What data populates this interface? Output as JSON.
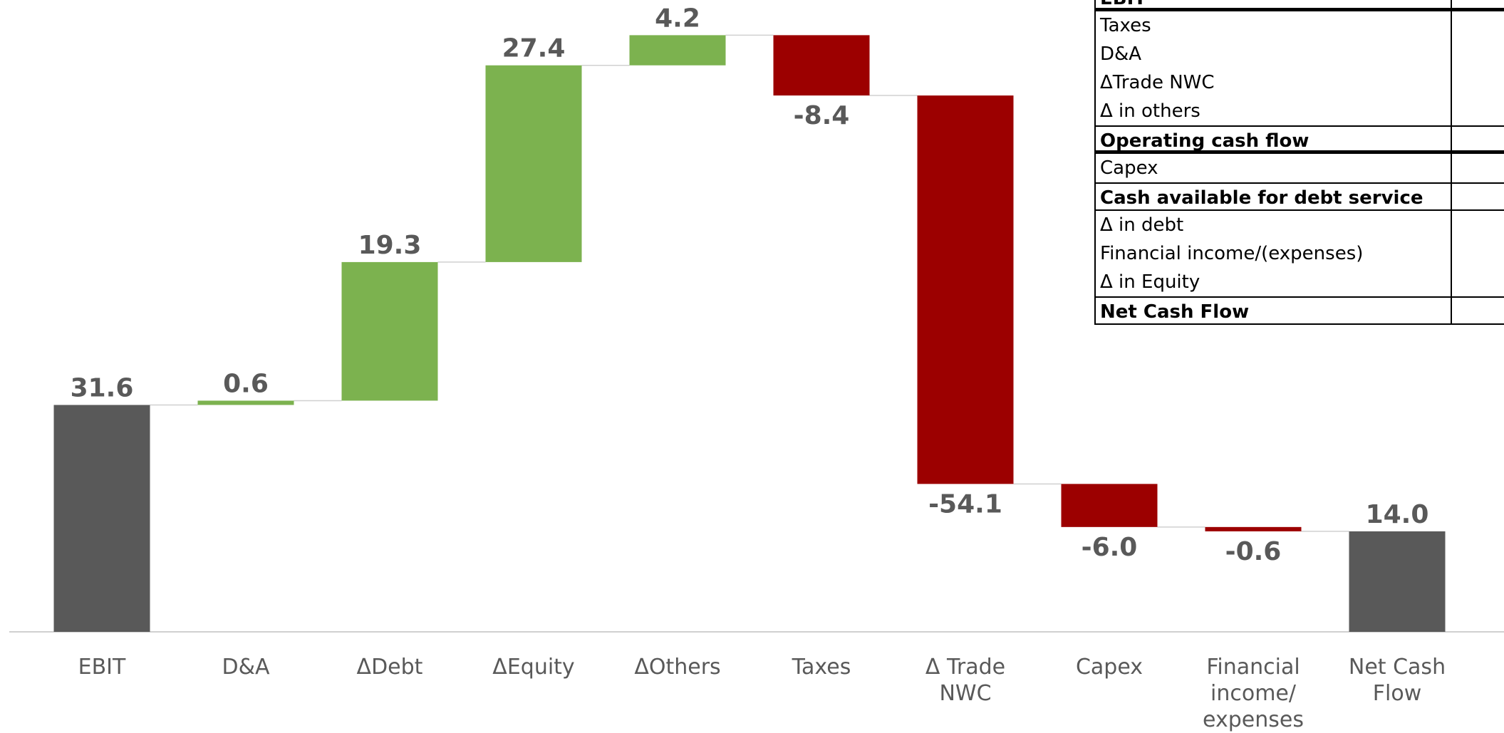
{
  "chart_data": {
    "type": "waterfall",
    "categories": [
      "EBIT",
      "D&A",
      "ΔDebt",
      "ΔEquity",
      "ΔOthers",
      "Taxes",
      "Δ Trade NWC",
      "Capex",
      "Financial income/ expenses",
      "Net Cash Flow"
    ],
    "values": [
      31.6,
      0.6,
      19.3,
      27.4,
      4.2,
      -8.4,
      -54.1,
      -6.0,
      -0.6,
      14.0
    ],
    "value_labels": [
      "31.6",
      "0.6",
      "19.3",
      "27.4",
      "4.2",
      "-8.4",
      "-54.1",
      "-6.0",
      "-0.6",
      "14.0"
    ],
    "bar_kinds": [
      "total",
      "increase",
      "increase",
      "increase",
      "increase",
      "decrease",
      "decrease",
      "decrease",
      "decrease",
      "total"
    ],
    "colors": {
      "total": "#595959",
      "increase": "#7cb24f",
      "decrease": "#9c0000"
    },
    "ylim": [
      0,
      88
    ]
  },
  "table": {
    "rows": [
      {
        "label": "EBIT",
        "bold": true
      },
      {
        "label": "Taxes",
        "bold": false
      },
      {
        "label": "D&A",
        "bold": false
      },
      {
        "label": "ΔTrade NWC",
        "bold": false
      },
      {
        "label": "Δ in others",
        "bold": false
      },
      {
        "label": "Operating cash flow",
        "bold": true
      },
      {
        "label": "Capex",
        "bold": false
      },
      {
        "label": "Cash available for debt service",
        "bold": true
      },
      {
        "label": "Δ in debt",
        "bold": false
      },
      {
        "label": "Financial income/(expenses)",
        "bold": false
      },
      {
        "label": "Δ in Equity",
        "bold": false
      },
      {
        "label": "Net Cash Flow",
        "bold": true
      }
    ]
  }
}
